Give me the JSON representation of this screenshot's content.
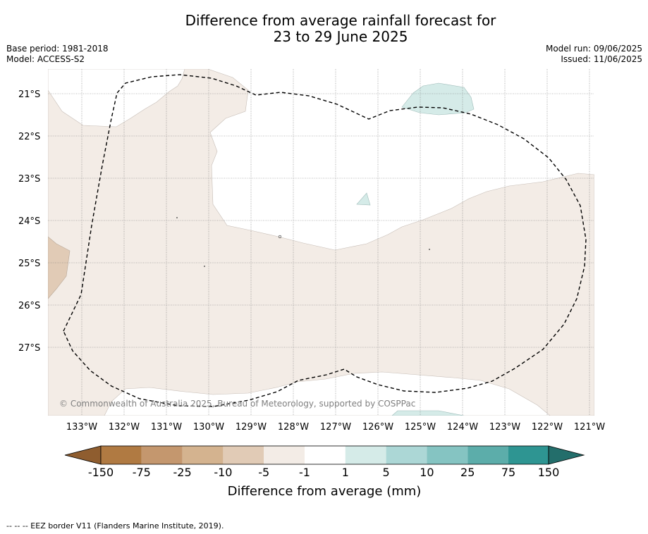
{
  "title_line1": "Difference from average rainfall forecast for",
  "title_line2": "23 to 29 June 2025",
  "base_period": "Base period: 1981-2018",
  "model": "Model: ACCESS-S2",
  "model_run": "Model run: 09/06/2025",
  "issued": "Issued: 11/06/2025",
  "copyright": "© Commonwealth of Australia 2025, Bureau of Meteorology, supported by COSPPac",
  "lat_labels": [
    "21°S",
    "22°S",
    "23°S",
    "24°S",
    "25°S",
    "26°S",
    "27°S"
  ],
  "lon_labels": [
    "133°W",
    "132°W",
    "131°W",
    "130°W",
    "129°W",
    "128°W",
    "127°W",
    "126°W",
    "125°W",
    "124°W",
    "123°W",
    "122°W",
    "121°W"
  ],
  "colorbar": {
    "title": "Difference from average (mm)",
    "ticks": [
      "-150",
      "-75",
      "-25",
      "-10",
      "-5",
      "-1",
      "1",
      "5",
      "10",
      "25",
      "75",
      "150"
    ],
    "colors": [
      "#8f5d2f",
      "#b07a42",
      "#c4976e",
      "#d4b38f",
      "#e1cbb6",
      "#f3ece6",
      "#ffffff",
      "#d5ebe8",
      "#acd7d6",
      "#85c4c2",
      "#5cadaa",
      "#2e9592",
      "#236e6b"
    ]
  },
  "legend_colors": {
    "light_brown": "#f3ece6",
    "medium_brown": "#e1cbb6",
    "light_teal": "#d5ebe8",
    "eez_border": "#000000"
  },
  "footer": "--  --  -- EEZ border V11 (Flanders Marine Institute, 2019)."
}
